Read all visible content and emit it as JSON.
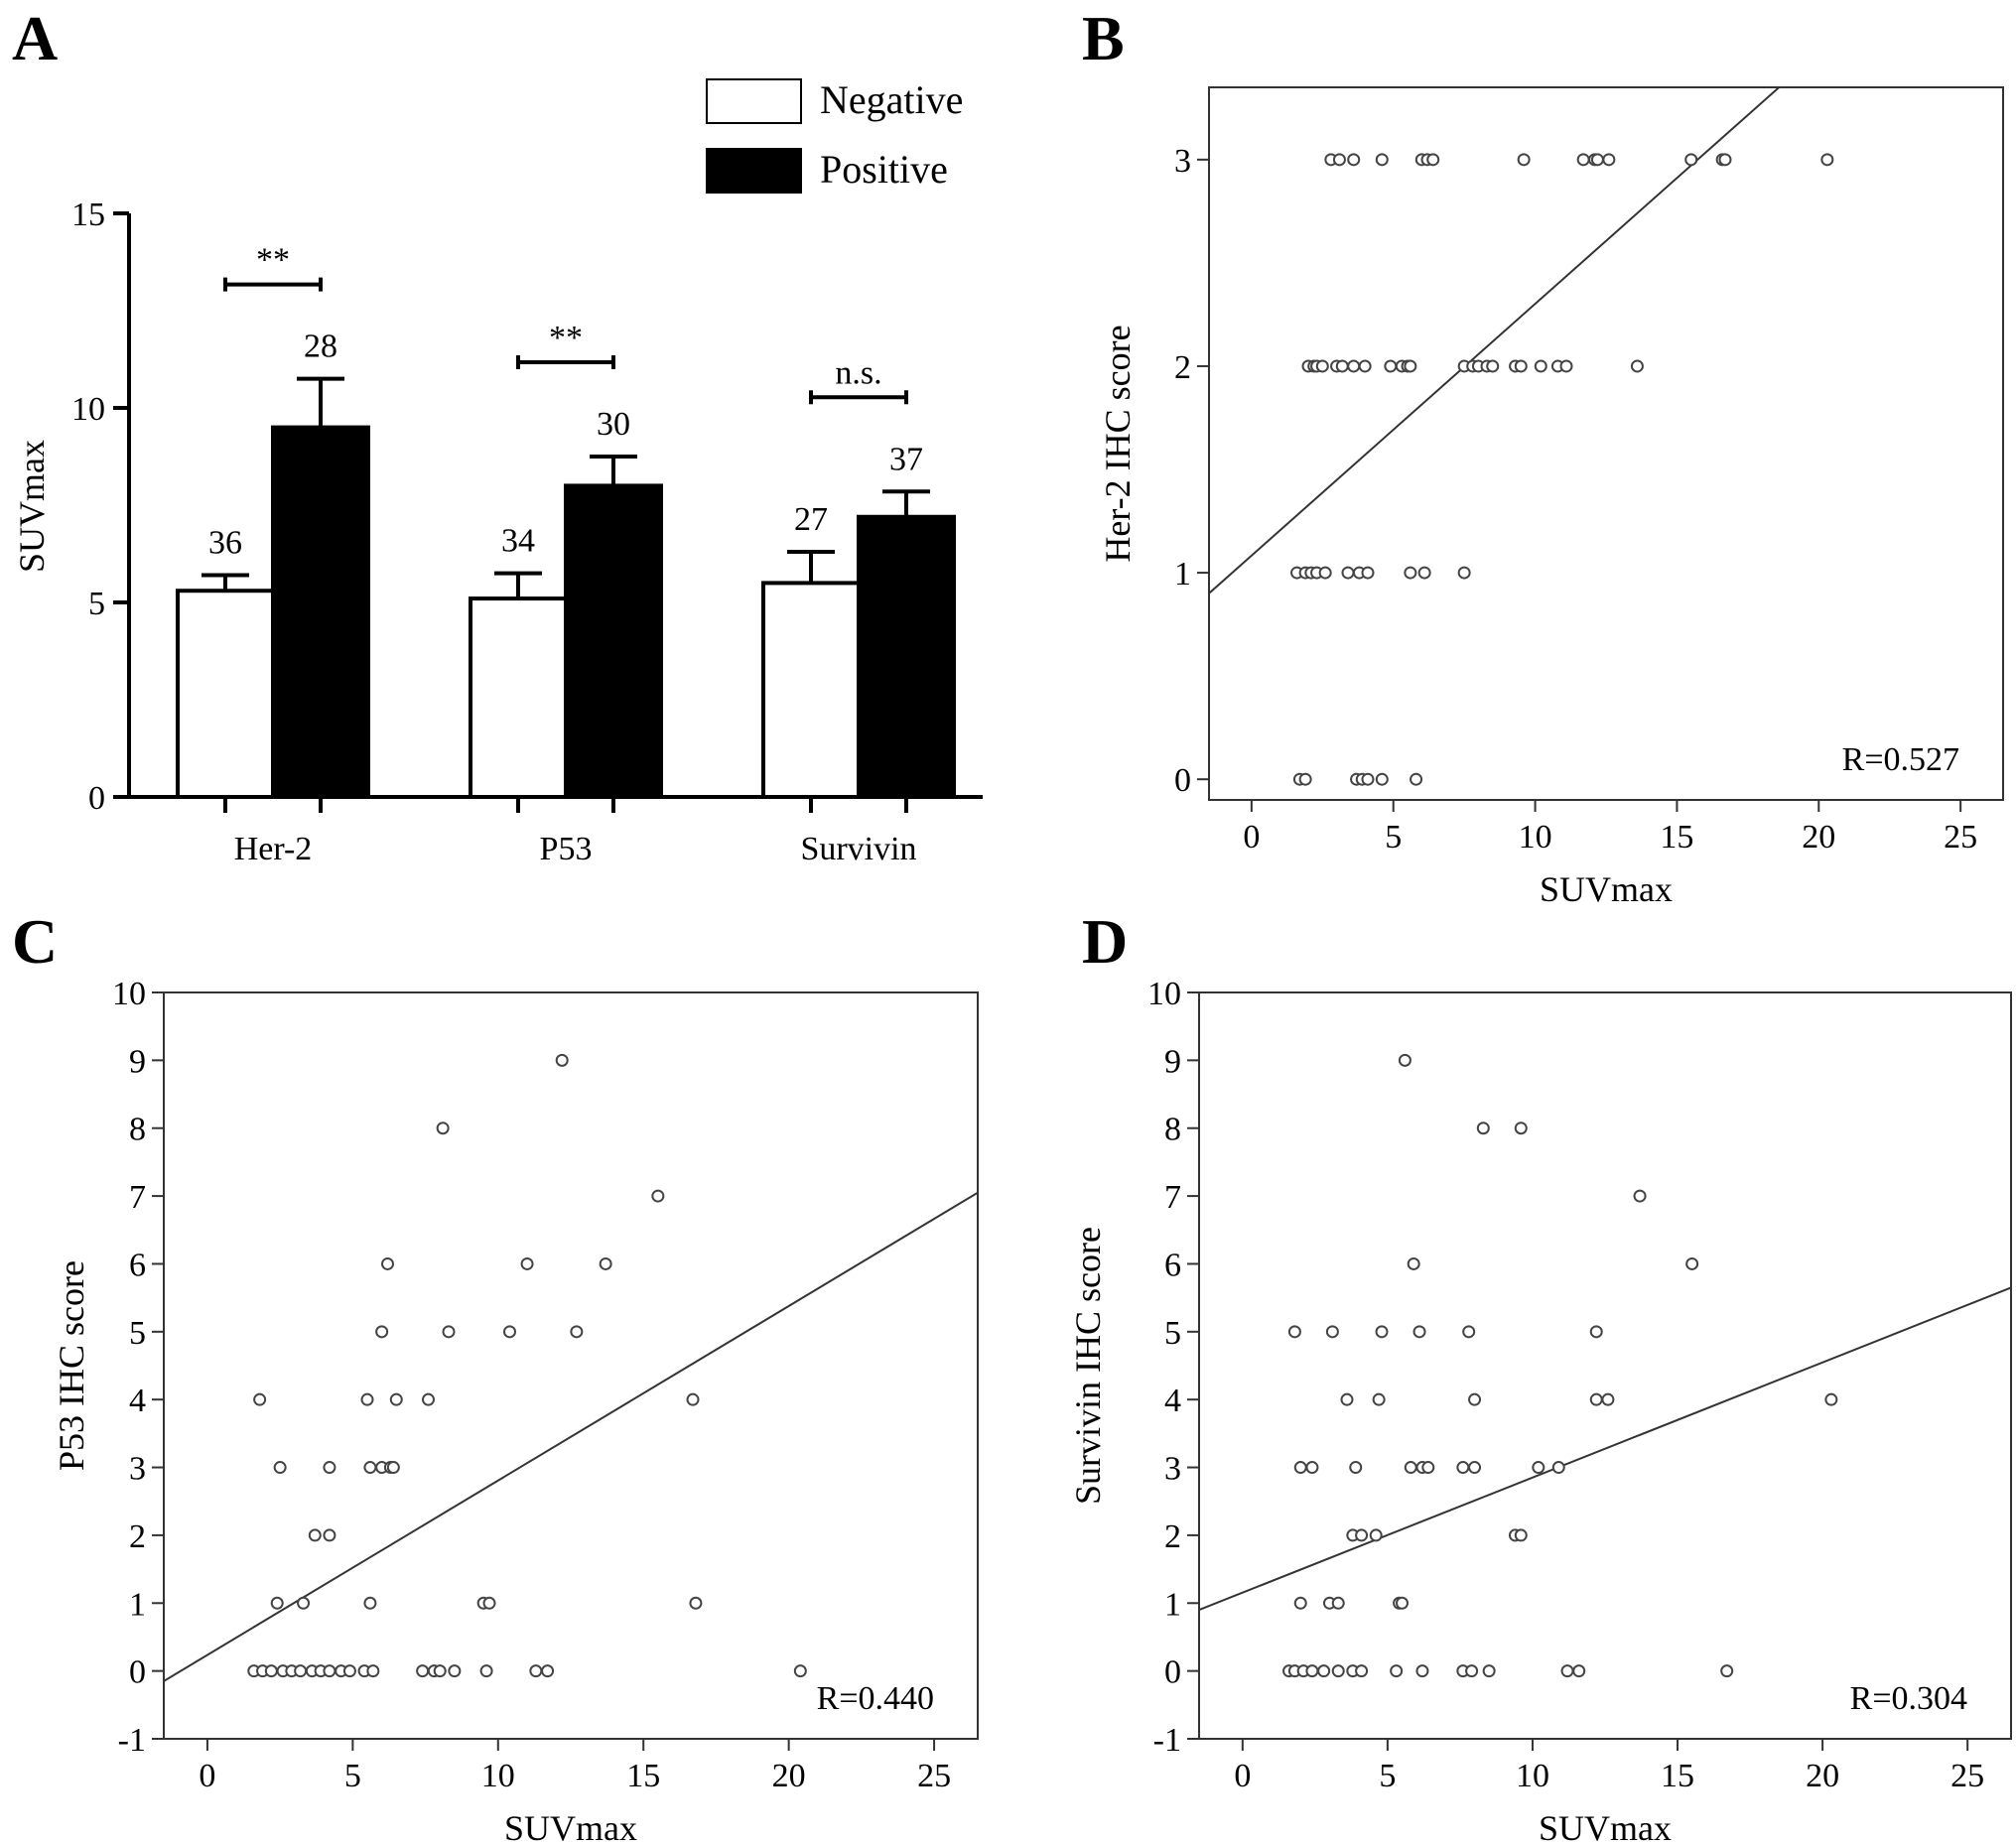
{
  "panels": {
    "A": "A",
    "B": "B",
    "C": "C",
    "D": "D"
  },
  "chart_data": [
    {
      "panel": "A",
      "type": "bar",
      "categories": [
        "Her-2",
        "P53",
        "Survivin"
      ],
      "ylabel": "SUVmax",
      "ylim": [
        0,
        15
      ],
      "yticks": [
        0,
        5,
        10,
        15
      ],
      "series": [
        {
          "name": "Negative",
          "color": "#ffffff",
          "values": [
            5.3,
            5.1,
            5.5
          ],
          "errors": [
            0.4,
            0.65,
            0.8
          ],
          "labels": [
            "36",
            "34",
            "27"
          ]
        },
        {
          "name": "Positive",
          "color": "#000000",
          "values": [
            9.5,
            8.0,
            7.2
          ],
          "errors": [
            1.25,
            0.75,
            0.65
          ],
          "labels": [
            "28",
            "30",
            "37"
          ]
        }
      ],
      "significance": [
        "**",
        "**",
        "n.s."
      ],
      "legend_position": "top-right"
    },
    {
      "panel": "B",
      "type": "scatter",
      "xlabel": "SUVmax",
      "ylabel": "Her-2  IHC score",
      "xlim": [
        -1.5,
        26.5
      ],
      "ylim": [
        -0.1,
        3.35
      ],
      "xticks": [
        0,
        5,
        10,
        15,
        20,
        25
      ],
      "yticks": [
        0,
        1,
        2,
        3
      ],
      "annotation": "R=0.527",
      "fit_line": [
        [
          -1.5,
          0.9
        ],
        [
          18.6,
          3.35
        ]
      ],
      "points": [
        [
          2.8,
          3
        ],
        [
          3.1,
          3
        ],
        [
          3.6,
          3
        ],
        [
          4.6,
          3
        ],
        [
          6.0,
          3
        ],
        [
          6.2,
          3
        ],
        [
          6.4,
          3
        ],
        [
          9.6,
          3
        ],
        [
          11.7,
          3
        ],
        [
          12.1,
          3
        ],
        [
          12.2,
          3
        ],
        [
          12.6,
          3
        ],
        [
          15.5,
          3
        ],
        [
          16.6,
          3
        ],
        [
          16.7,
          3
        ],
        [
          20.3,
          3
        ],
        [
          2.0,
          2
        ],
        [
          2.2,
          2
        ],
        [
          2.3,
          2
        ],
        [
          2.5,
          2
        ],
        [
          3.0,
          2
        ],
        [
          3.2,
          2
        ],
        [
          3.6,
          2
        ],
        [
          4.0,
          2
        ],
        [
          4.9,
          2
        ],
        [
          5.3,
          2
        ],
        [
          5.5,
          2
        ],
        [
          5.6,
          2
        ],
        [
          7.5,
          2
        ],
        [
          7.8,
          2
        ],
        [
          8.0,
          2
        ],
        [
          8.3,
          2
        ],
        [
          8.5,
          2
        ],
        [
          9.3,
          2
        ],
        [
          9.5,
          2
        ],
        [
          10.2,
          2
        ],
        [
          10.8,
          2
        ],
        [
          11.1,
          2
        ],
        [
          13.6,
          2
        ],
        [
          1.6,
          1
        ],
        [
          1.9,
          1
        ],
        [
          2.1,
          1
        ],
        [
          2.3,
          1
        ],
        [
          2.6,
          1
        ],
        [
          3.4,
          1
        ],
        [
          3.8,
          1
        ],
        [
          4.1,
          1
        ],
        [
          5.6,
          1
        ],
        [
          6.1,
          1
        ],
        [
          7.5,
          1
        ],
        [
          1.7,
          0
        ],
        [
          1.9,
          0
        ],
        [
          3.7,
          0
        ],
        [
          3.9,
          0
        ],
        [
          4.1,
          0
        ],
        [
          4.6,
          0
        ],
        [
          5.8,
          0
        ]
      ]
    },
    {
      "panel": "C",
      "type": "scatter",
      "xlabel": "SUVmax",
      "ylabel": "P53  IHC score",
      "xlim": [
        -1.5,
        26.5
      ],
      "ylim": [
        -1,
        10
      ],
      "xticks": [
        0,
        5,
        10,
        15,
        20,
        25
      ],
      "yticks": [
        -1,
        0,
        1,
        2,
        3,
        4,
        5,
        6,
        7,
        8,
        9,
        10
      ],
      "annotation": "R=0.440",
      "fit_line": [
        [
          -1.5,
          -0.15
        ],
        [
          26.5,
          7.05
        ]
      ],
      "points": [
        [
          12.2,
          9
        ],
        [
          8.1,
          8
        ],
        [
          15.5,
          7
        ],
        [
          6.2,
          6
        ],
        [
          11.0,
          6
        ],
        [
          13.7,
          6
        ],
        [
          6.0,
          5
        ],
        [
          8.3,
          5
        ],
        [
          10.4,
          5
        ],
        [
          12.7,
          5
        ],
        [
          1.8,
          4
        ],
        [
          5.5,
          4
        ],
        [
          6.5,
          4
        ],
        [
          7.6,
          4
        ],
        [
          16.7,
          4
        ],
        [
          2.5,
          3
        ],
        [
          4.2,
          3
        ],
        [
          5.6,
          3
        ],
        [
          6.0,
          3
        ],
        [
          6.3,
          3
        ],
        [
          6.4,
          3
        ],
        [
          3.7,
          2
        ],
        [
          4.2,
          2
        ],
        [
          2.4,
          1
        ],
        [
          3.3,
          1
        ],
        [
          5.6,
          1
        ],
        [
          9.5,
          1
        ],
        [
          9.7,
          1
        ],
        [
          16.8,
          1
        ],
        [
          1.6,
          0
        ],
        [
          1.9,
          0
        ],
        [
          2.2,
          0
        ],
        [
          2.6,
          0
        ],
        [
          2.9,
          0
        ],
        [
          3.2,
          0
        ],
        [
          3.6,
          0
        ],
        [
          3.9,
          0
        ],
        [
          4.2,
          0
        ],
        [
          4.6,
          0
        ],
        [
          4.9,
          0
        ],
        [
          5.4,
          0
        ],
        [
          5.7,
          0
        ],
        [
          7.4,
          0
        ],
        [
          7.8,
          0
        ],
        [
          8.0,
          0
        ],
        [
          8.5,
          0
        ],
        [
          9.6,
          0
        ],
        [
          11.3,
          0
        ],
        [
          11.7,
          0
        ],
        [
          20.4,
          0
        ]
      ]
    },
    {
      "panel": "D",
      "type": "scatter",
      "xlabel": "SUVmax",
      "ylabel": "Survivin IHC score",
      "xlim": [
        -1.5,
        26.5
      ],
      "ylim": [
        -1,
        10
      ],
      "xticks": [
        0,
        5,
        10,
        15,
        20,
        25
      ],
      "yticks": [
        -1,
        0,
        1,
        2,
        3,
        4,
        5,
        6,
        7,
        8,
        9,
        10
      ],
      "annotation": "R=0.304",
      "fit_line": [
        [
          -1.5,
          0.9
        ],
        [
          26.5,
          5.65
        ]
      ],
      "points": [
        [
          5.6,
          9
        ],
        [
          8.3,
          8
        ],
        [
          9.6,
          8
        ],
        [
          13.7,
          7
        ],
        [
          5.9,
          6
        ],
        [
          15.5,
          6
        ],
        [
          1.8,
          5
        ],
        [
          3.1,
          5
        ],
        [
          4.8,
          5
        ],
        [
          6.1,
          5
        ],
        [
          7.8,
          5
        ],
        [
          12.2,
          5
        ],
        [
          3.6,
          4
        ],
        [
          4.7,
          4
        ],
        [
          8.0,
          4
        ],
        [
          12.2,
          4
        ],
        [
          12.6,
          4
        ],
        [
          20.3,
          4
        ],
        [
          2.0,
          3
        ],
        [
          2.4,
          3
        ],
        [
          3.9,
          3
        ],
        [
          5.8,
          3
        ],
        [
          6.2,
          3
        ],
        [
          6.4,
          3
        ],
        [
          7.6,
          3
        ],
        [
          8.0,
          3
        ],
        [
          10.2,
          3
        ],
        [
          10.9,
          3
        ],
        [
          3.8,
          2
        ],
        [
          4.1,
          2
        ],
        [
          4.6,
          2
        ],
        [
          9.4,
          2
        ],
        [
          9.6,
          2
        ],
        [
          2.0,
          1
        ],
        [
          3.0,
          1
        ],
        [
          3.3,
          1
        ],
        [
          5.4,
          1
        ],
        [
          5.5,
          1
        ],
        [
          1.6,
          0
        ],
        [
          1.8,
          0
        ],
        [
          2.1,
          0
        ],
        [
          2.4,
          0
        ],
        [
          2.8,
          0
        ],
        [
          3.3,
          0
        ],
        [
          3.8,
          0
        ],
        [
          4.1,
          0
        ],
        [
          5.3,
          0
        ],
        [
          6.2,
          0
        ],
        [
          7.6,
          0
        ],
        [
          7.9,
          0
        ],
        [
          8.5,
          0
        ],
        [
          11.2,
          0
        ],
        [
          11.6,
          0
        ],
        [
          16.7,
          0
        ]
      ]
    }
  ]
}
